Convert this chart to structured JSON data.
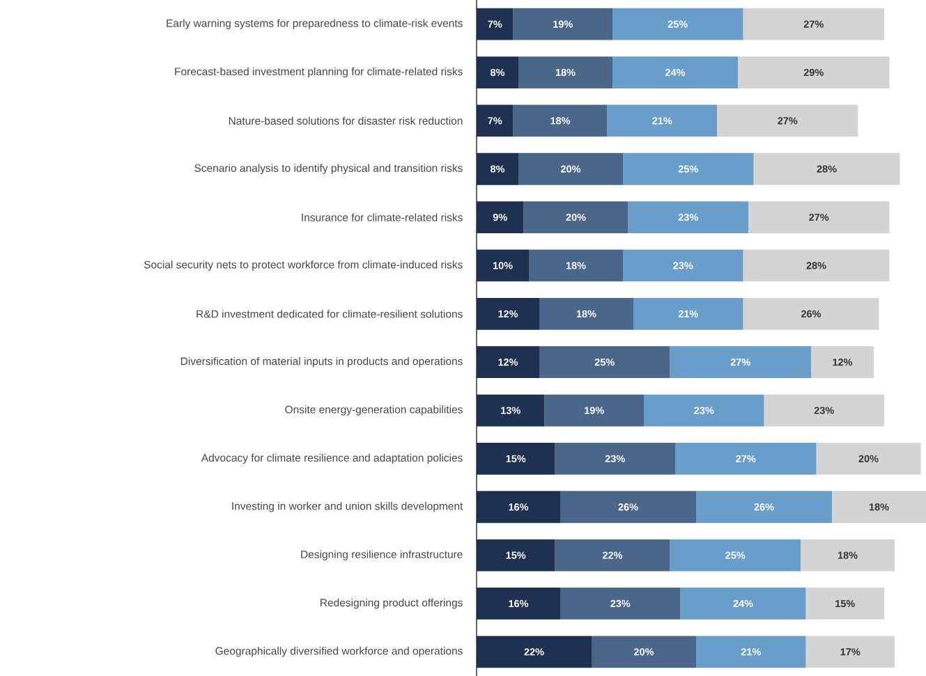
{
  "chart_data": {
    "type": "bar",
    "orientation": "horizontal",
    "stacked": true,
    "categories": [
      "Early warning systems for preparedness to climate-risk events",
      "Forecast-based investment planning for climate-related risks",
      "Nature-based solutions for disaster risk reduction",
      "Scenario analysis to identify physical and transition risks",
      "Insurance for climate-related risks",
      "Social security nets to protect workforce from climate-induced risks",
      "R&D investment dedicated for climate-resilient solutions",
      "Diversification of material inputs in products and operations",
      "Onsite energy-generation capabilities",
      "Advocacy for climate resilience and adaptation policies",
      "Investing in worker and union skills development",
      "Designing resilience infrastructure",
      "Redesigning product offerings",
      "Geographically diversified workforce and operations"
    ],
    "series": [
      {
        "color": "#1f3150",
        "values": [
          7,
          8,
          7,
          8,
          9,
          10,
          12,
          12,
          13,
          15,
          16,
          15,
          16,
          22
        ],
        "value_labels": [
          "7%",
          "8%",
          "7%",
          "8%",
          "9%",
          "10%",
          "12%",
          "12%",
          "13%",
          "15%",
          "16%",
          "15%",
          "16%",
          "22%"
        ]
      },
      {
        "color": "#4a6689",
        "values": [
          19,
          18,
          18,
          20,
          20,
          18,
          18,
          25,
          19,
          23,
          26,
          22,
          23,
          20
        ],
        "value_labels": [
          "19%",
          "18%",
          "18%",
          "20%",
          "20%",
          "18%",
          "18%",
          "25%",
          "19%",
          "23%",
          "26%",
          "22%",
          "23%",
          "20%"
        ]
      },
      {
        "color": "#699dca",
        "values": [
          25,
          24,
          21,
          25,
          23,
          23,
          21,
          27,
          23,
          27,
          26,
          25,
          24,
          21
        ],
        "value_labels": [
          "25%",
          "24%",
          "21%",
          "25%",
          "23%",
          "23%",
          "21%",
          "27%",
          "23%",
          "27%",
          "26%",
          "25%",
          "24%",
          "21%"
        ]
      },
      {
        "color": "#d4d4d4",
        "values": [
          27,
          29,
          27,
          28,
          27,
          28,
          26,
          12,
          23,
          20,
          18,
          18,
          15,
          17
        ],
        "value_labels": [
          "27%",
          "29%",
          "27%",
          "28%",
          "27%",
          "28%",
          "26%",
          "12%",
          "23%",
          "20%",
          "18%",
          "18%",
          "15%",
          "17%"
        ]
      }
    ]
  }
}
